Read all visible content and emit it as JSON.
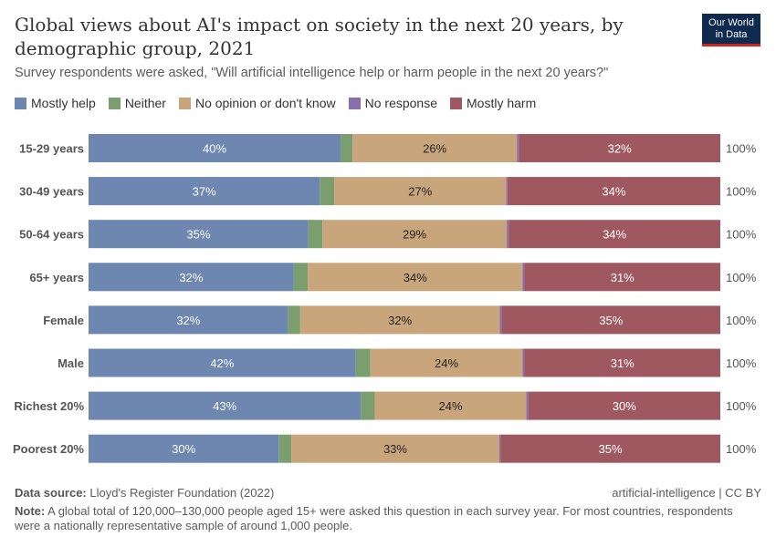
{
  "header": {
    "title": "Global views about AI's impact on society in the next 20 years, by demographic group, 2021",
    "subtitle": "Survey respondents were asked, \"Will artificial intelligence help or harm people in the next 20 years?\"",
    "logo": "Our World in Data"
  },
  "chart_data": {
    "type": "bar",
    "orientation": "horizontal",
    "stacked": true,
    "categories": [
      "15-29 years",
      "30-49 years",
      "50-64 years",
      "65+ years",
      "Female",
      "Male",
      "Richest 20%",
      "Poorest 20%"
    ],
    "series": [
      {
        "name": "Mostly help",
        "color": "#6d87b0",
        "values": [
          39.9,
          36.6,
          34.8,
          32.5,
          31.6,
          42.3,
          43.1,
          30.1
        ],
        "labels": [
          "40%",
          "37%",
          "35%",
          "32%",
          "32%",
          "42%",
          "43%",
          "30%"
        ]
      },
      {
        "name": "Neither",
        "color": "#7a9e6e",
        "values": [
          1.9,
          2.3,
          2.2,
          2.2,
          1.9,
          2.3,
          2.2,
          2.0
        ],
        "labels": [
          "",
          "",
          "",
          "",
          "",
          "",
          "",
          ""
        ]
      },
      {
        "name": "No opinion or don't know",
        "color": "#c8a57b",
        "values": [
          26.0,
          27.2,
          29.2,
          34.0,
          31.6,
          24.1,
          24.0,
          32.9
        ],
        "labels": [
          "26%",
          "27%",
          "29%",
          "34%",
          "32%",
          "24%",
          "24%",
          "33%"
        ]
      },
      {
        "name": "No response",
        "color": "#8a6fb0",
        "values": [
          0.3,
          0.2,
          0.3,
          0.3,
          0.3,
          0.3,
          0.3,
          0.2
        ],
        "labels": [
          "",
          "",
          "",
          "",
          "",
          "",
          "",
          ""
        ]
      },
      {
        "name": "Mostly harm",
        "color": "#a05860",
        "values": [
          31.9,
          33.7,
          33.5,
          31.0,
          34.6,
          31.0,
          30.4,
          34.8
        ],
        "labels": [
          "32%",
          "34%",
          "34%",
          "31%",
          "35%",
          "31%",
          "30%",
          "35%"
        ]
      }
    ],
    "totals": [
      "100%",
      "100%",
      "100%",
      "100%",
      "100%",
      "100%",
      "100%",
      "100%"
    ],
    "xlim": [
      0,
      100
    ],
    "legend": "top",
    "grid": false
  },
  "footer": {
    "source_label": "Data source:",
    "source": "Lloyd's Register Foundation (2022)",
    "slug": "artificial-intelligence | CC BY",
    "note_label": "Note:",
    "note": "A global total of 120,000–130,000 people aged 15+ were asked this question in each survey year. For most countries, respondents were a nationally representative sample of around 1,000 people."
  }
}
